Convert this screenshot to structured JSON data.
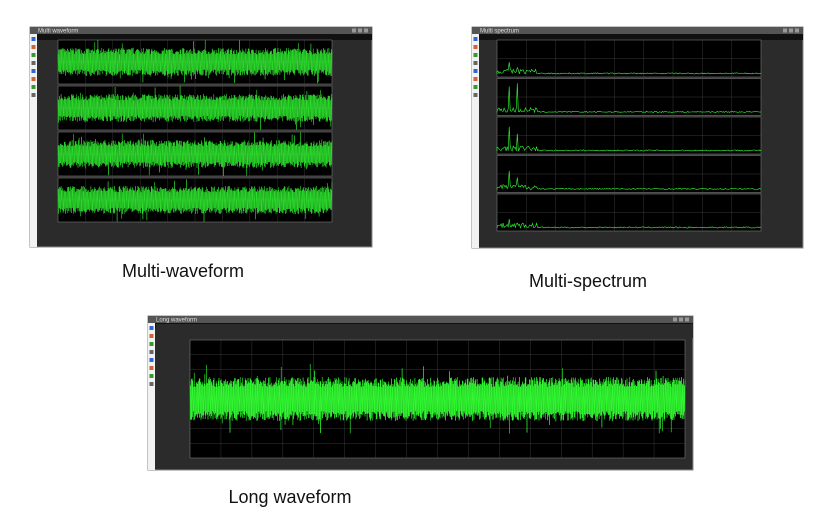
{
  "windows": [
    {
      "title": "Multi waveform",
      "caption": "Multi-waveform"
    },
    {
      "title": "Multi spectrum",
      "caption": "Multi-spectrum"
    },
    {
      "title": "Long waveform",
      "caption": "Long waveform"
    }
  ]
}
